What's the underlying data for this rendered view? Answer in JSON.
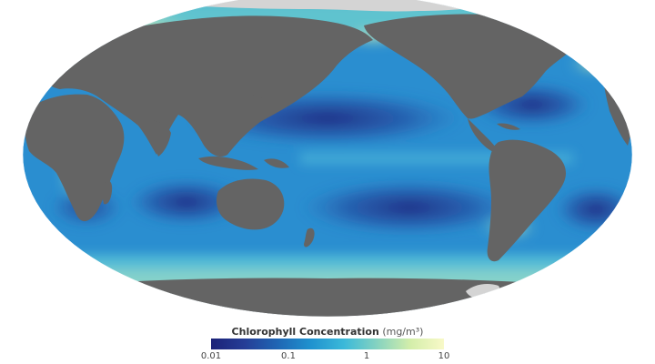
{
  "map": {
    "subject": "Global ocean chlorophyll concentration",
    "projection": "Robinson",
    "colors": {
      "land": "#646464",
      "ice": "#d4d4d4",
      "ocean_low": "#1f2f86",
      "ocean_mid": "#2a8ed0",
      "ocean_high": "#f0f4b0",
      "background": "#ffffff"
    }
  },
  "legend": {
    "title": "Chlorophyll Concentration",
    "unit": "(mg/m³)",
    "scale": "log",
    "ticks": [
      "0.01",
      "0.1",
      "1",
      "10"
    ],
    "range": [
      0.01,
      10
    ],
    "colors": [
      "#1c2278",
      "#253d96",
      "#1f66b4",
      "#1f92cf",
      "#3bb9d9",
      "#86d3c0",
      "#d4eeaa",
      "#f8f9c8"
    ]
  }
}
